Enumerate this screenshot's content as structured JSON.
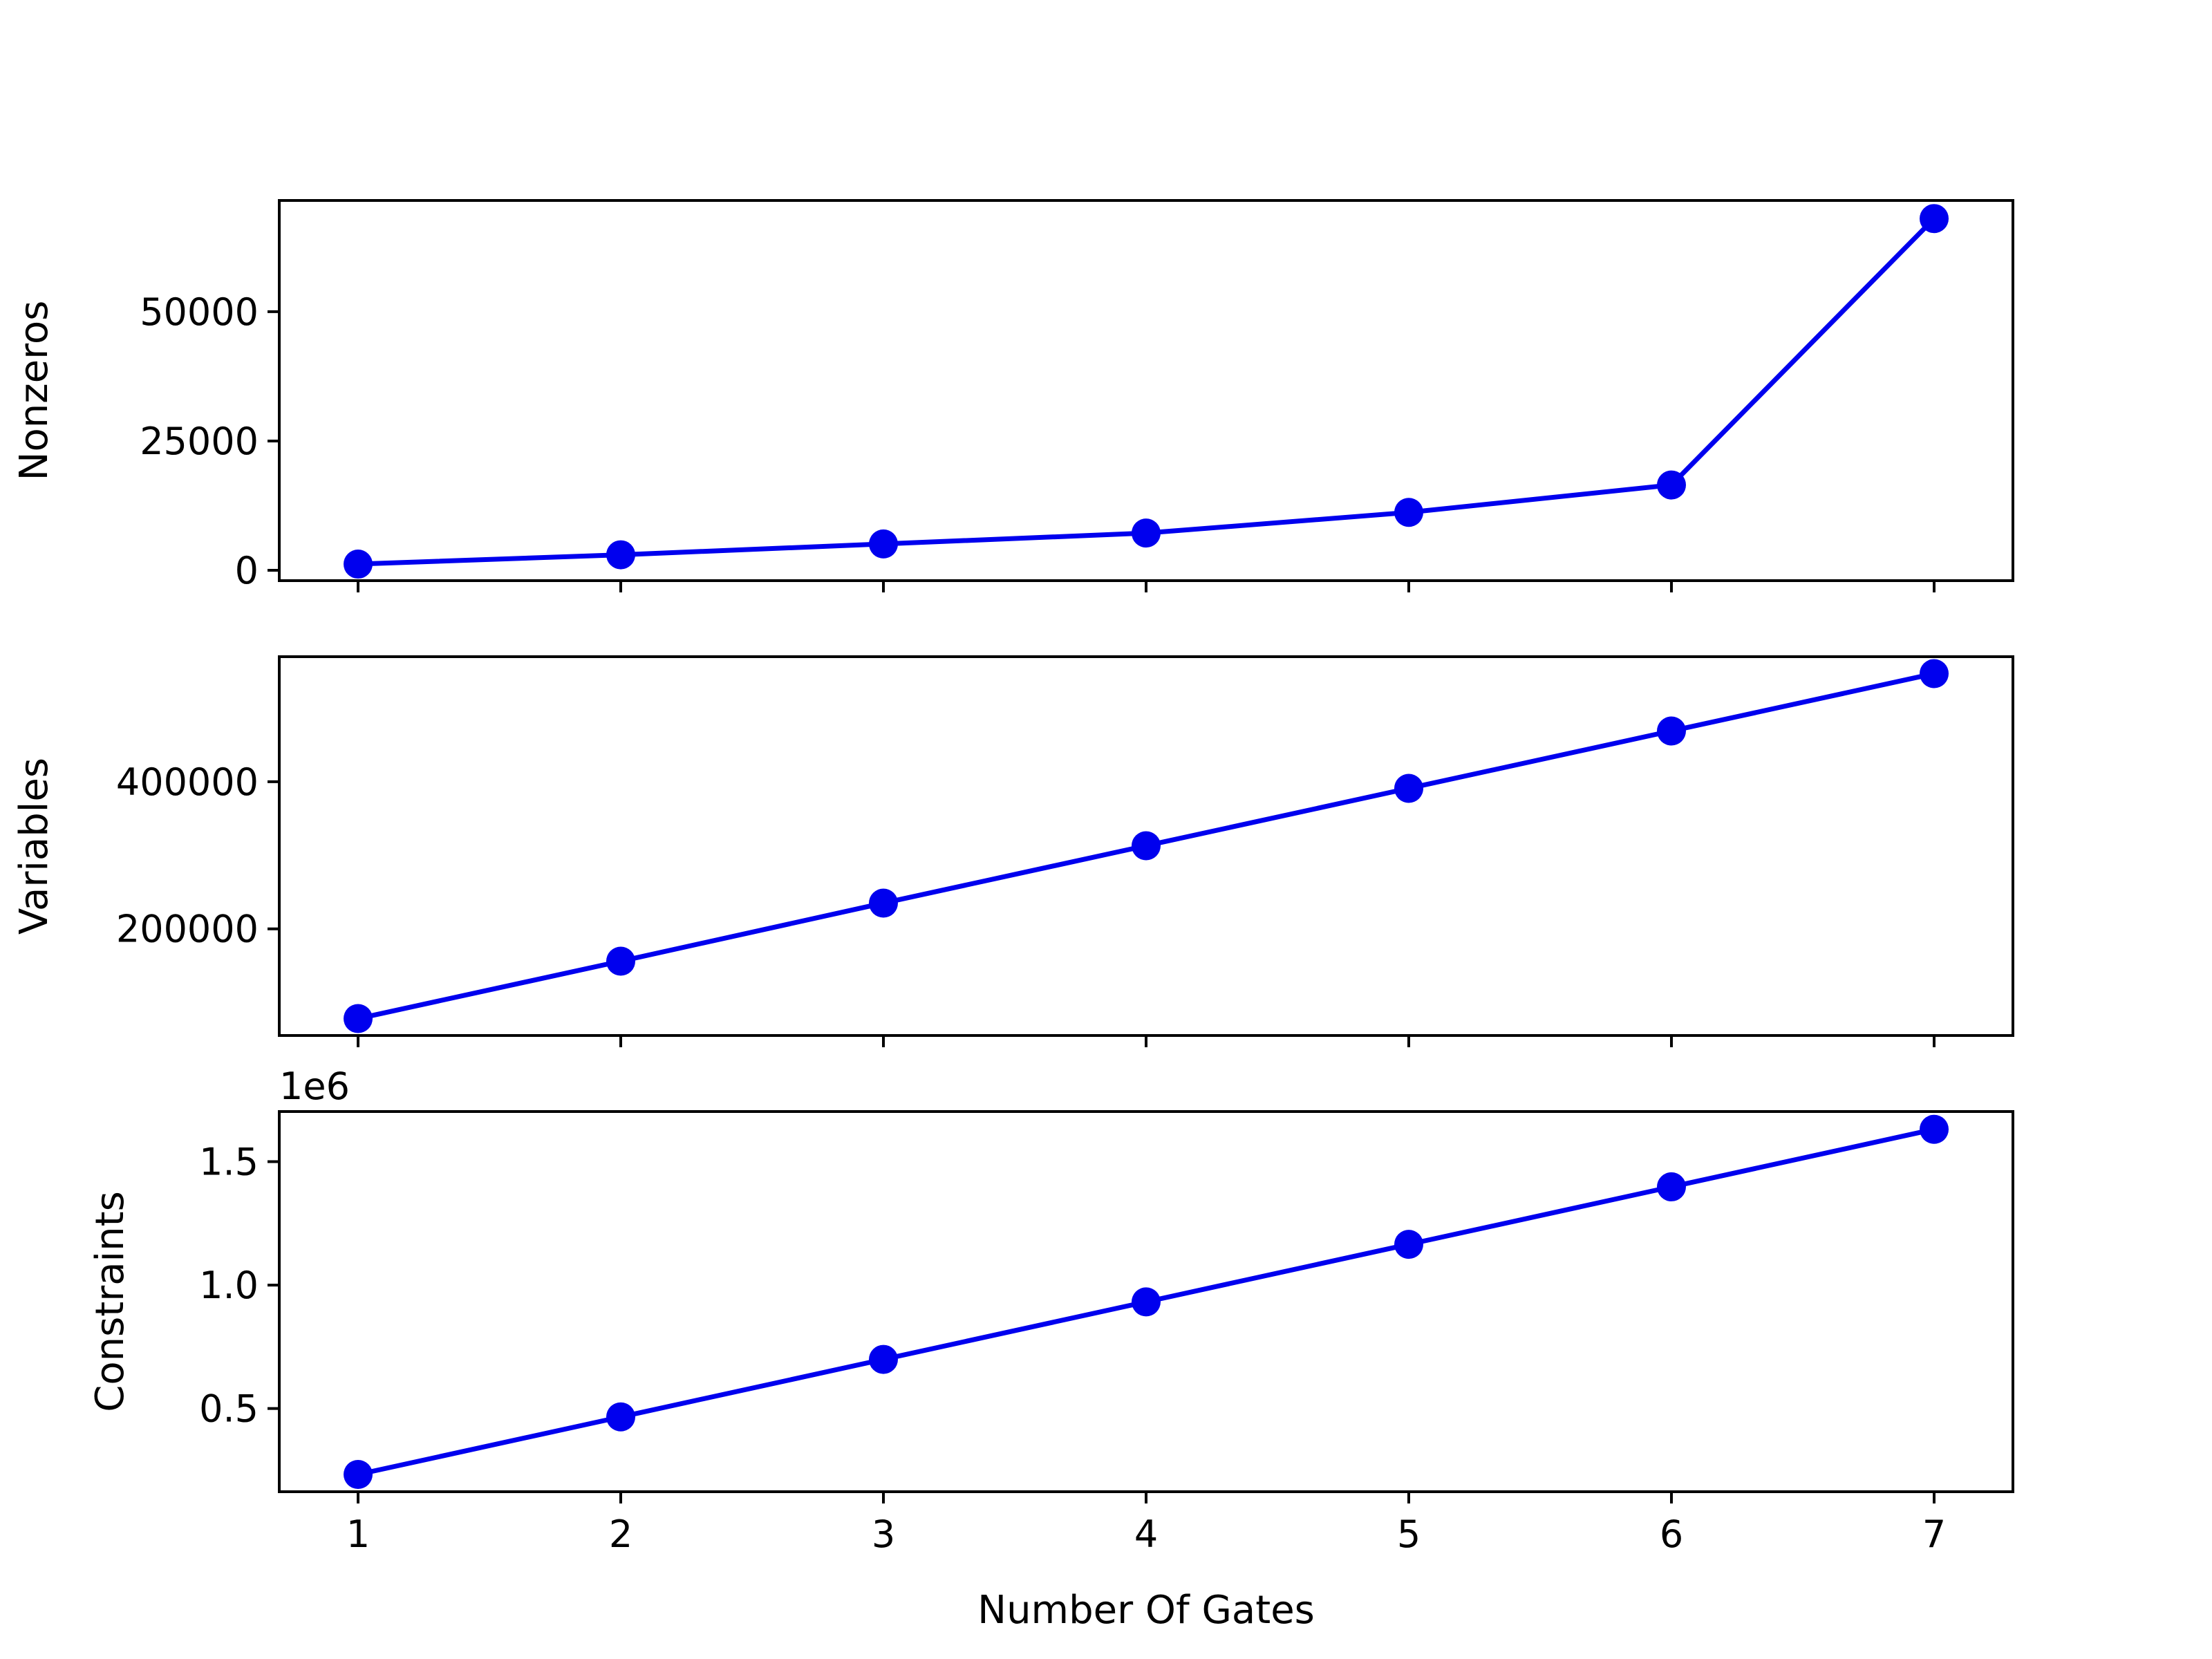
{
  "chart_data": [
    {
      "type": "line",
      "x": [
        1,
        2,
        3,
        4,
        5,
        6,
        7
      ],
      "series": [
        {
          "values": [
            1200,
            3000,
            5100,
            7200,
            11200,
            16500,
            68000
          ]
        }
      ],
      "xlabel": "",
      "ylabel": "Nonzeros",
      "ylim": [
        -2000,
        71500
      ],
      "xlim": [
        0.7,
        7.3
      ],
      "yticks": [
        0,
        25000,
        50000
      ],
      "ytick_labels": [
        "0",
        "25000",
        "50000"
      ],
      "xticks": [
        1,
        2,
        3,
        4,
        5,
        6,
        7
      ],
      "xtick_labels": [
        "",
        "",
        "",
        "",
        "",
        "",
        ""
      ],
      "offset_text": "",
      "color": "#0000ee",
      "marker": "circle",
      "grid": false
    },
    {
      "type": "line",
      "x": [
        1,
        2,
        3,
        4,
        5,
        6,
        7
      ],
      "series": [
        {
          "values": [
            78000,
            156000,
            235000,
            313000,
            391000,
            469000,
            547000
          ]
        }
      ],
      "xlabel": "",
      "ylabel": "Variables",
      "ylim": [
        55000,
        570000
      ],
      "xlim": [
        0.7,
        7.3
      ],
      "yticks": [
        200000,
        400000
      ],
      "ytick_labels": [
        "200000",
        "400000"
      ],
      "xticks": [
        1,
        2,
        3,
        4,
        5,
        6,
        7
      ],
      "xtick_labels": [
        "",
        "",
        "",
        "",
        "",
        "",
        ""
      ],
      "offset_text": "",
      "color": "#0000ee",
      "marker": "circle",
      "grid": false
    },
    {
      "type": "line",
      "x": [
        1,
        2,
        3,
        4,
        5,
        6,
        7
      ],
      "series": [
        {
          "values": [
            0.233,
            0.466,
            0.699,
            0.932,
            1.165,
            1.398,
            1.631
          ]
        }
      ],
      "xlabel": "Number Of Gates",
      "ylabel": "Constraints",
      "ylim": [
        0.163,
        1.703
      ],
      "xlim": [
        0.7,
        7.3
      ],
      "yticks": [
        0.5,
        1.0,
        1.5
      ],
      "ytick_labels": [
        "0.5",
        "1.0",
        "1.5"
      ],
      "xticks": [
        1,
        2,
        3,
        4,
        5,
        6,
        7
      ],
      "xtick_labels": [
        "1",
        "2",
        "3",
        "4",
        "5",
        "6",
        "7"
      ],
      "offset_text": "1e6",
      "color": "#0000ee",
      "marker": "circle",
      "grid": false
    }
  ]
}
